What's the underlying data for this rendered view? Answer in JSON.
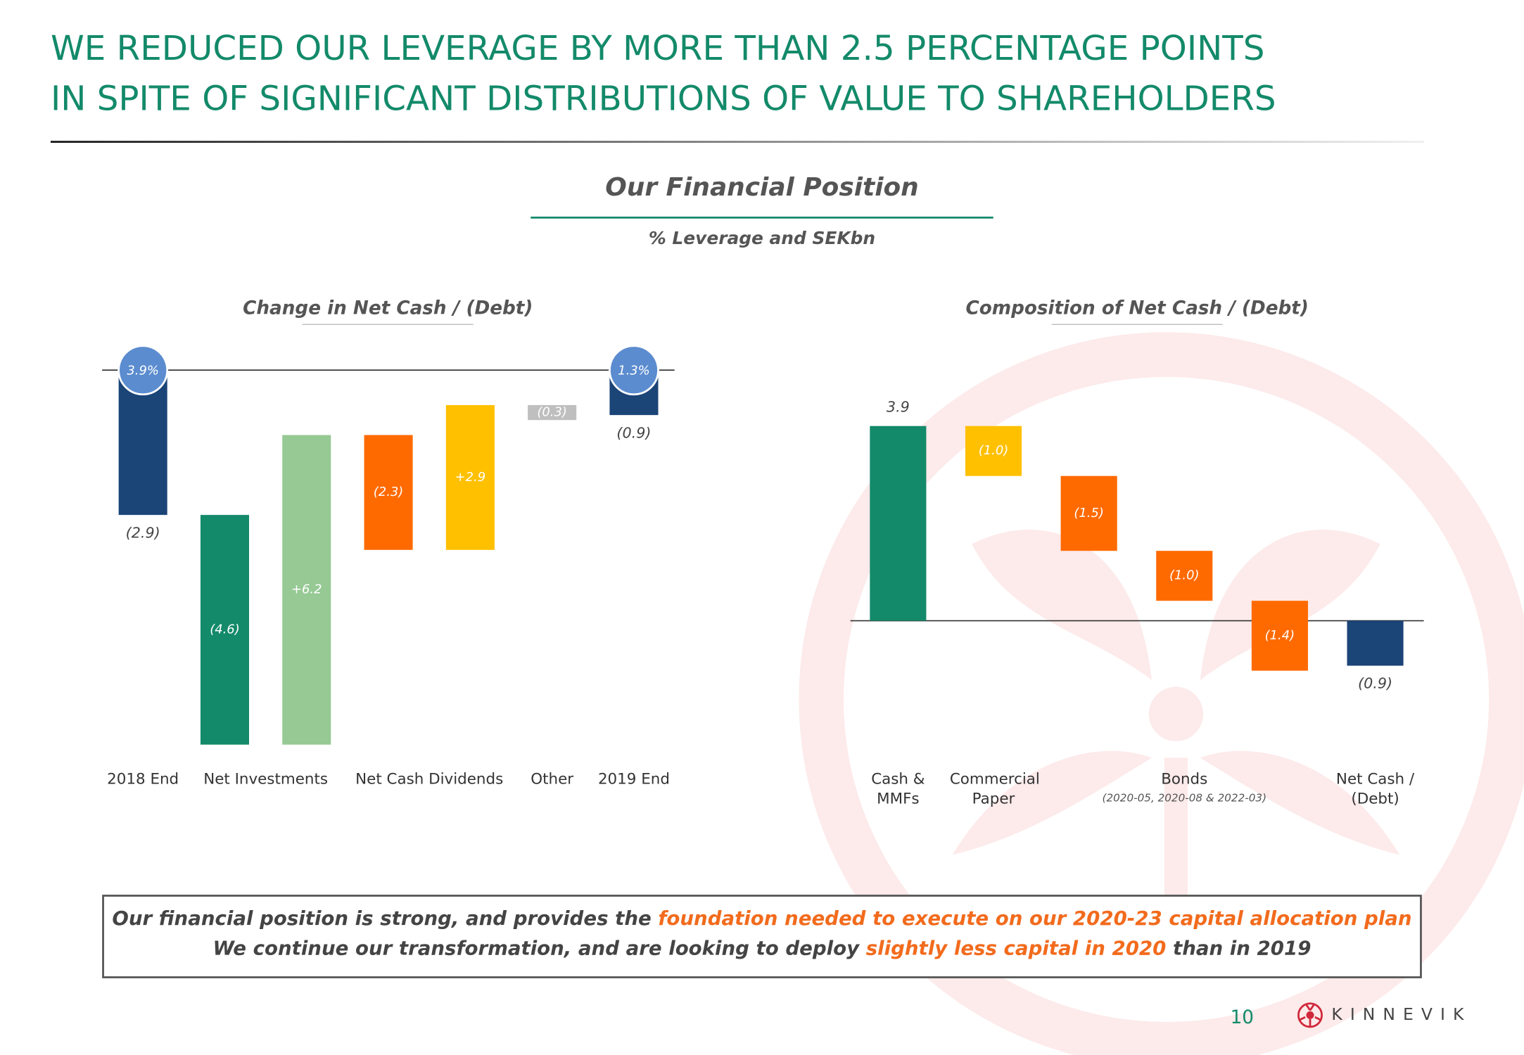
{
  "title": [
    "WE REDUCED OUR LEVERAGE BY MORE THAN 2.5 PERCENTAGE POINTS",
    "IN SPITE OF SIGNIFICANT DISTRIBUTIONS OF VALUE TO SHAREHOLDERS"
  ],
  "heading": "Our Financial Position",
  "subheading": "% Leverage and SEKbn",
  "chart_data": [
    {
      "type": "waterfall",
      "title": "Change in Net Cash / (Debt)",
      "categories": [
        "2018 End",
        "Net Investments",
        null,
        "Net Cash Dividends",
        null,
        "Other",
        "2019 End"
      ],
      "values": [
        -2.9,
        -4.6,
        6.2,
        -2.3,
        2.9,
        -0.3,
        -0.9
      ],
      "value_labels": [
        "(2.9)",
        "(4.6)",
        "+6.2",
        "(2.3)",
        "+2.9",
        "(0.3)",
        "(0.9)"
      ],
      "measures": [
        "absolute",
        "relative",
        "relative",
        "relative",
        "relative",
        "relative",
        "absolute"
      ],
      "colors": [
        "#1b4477",
        "#138a6a",
        "#96c994",
        "#ff6a00",
        "#ffc000",
        "#bfbfbf",
        "#1b4477"
      ],
      "leverage": [
        3.9,
        null,
        null,
        null,
        null,
        null,
        1.3
      ],
      "leverage_labels": [
        "3.9%",
        null,
        null,
        null,
        null,
        null,
        "1.3%"
      ]
    },
    {
      "type": "waterfall",
      "title": "Composition of Net Cash / (Debt)",
      "categories": [
        "Cash & MMFs",
        "Commercial Paper",
        null,
        "Bonds",
        null,
        "Net Cash / (Debt)"
      ],
      "category_notes": [
        null,
        null,
        null,
        "(2020-05, 2020-08 & 2022-03)",
        null,
        null
      ],
      "values": [
        3.9,
        -1.0,
        -1.5,
        -1.0,
        -1.4,
        -0.9
      ],
      "value_labels": [
        "3.9",
        "(1.0)",
        "(1.5)",
        "(1.0)",
        "(1.4)",
        "(0.9)"
      ],
      "measures": [
        "absolute",
        "relative",
        "relative",
        "relative",
        "relative",
        "absolute"
      ],
      "colors": [
        "#138a6a",
        "#ffc000",
        "#ff6a00",
        "#ff6a00",
        "#ff6a00",
        "#1b4477"
      ]
    }
  ],
  "callout": [
    [
      {
        "text": "Our financial position is strong, and provides the ",
        "color": "#444444"
      },
      {
        "text": "foundation needed to execute on our 2020-23 capital allocation plan",
        "color": "#f26b1d"
      }
    ],
    [
      {
        "text": "We continue our transformation, and are looking to deploy ",
        "color": "#444444"
      },
      {
        "text": "slightly less capital in 2020",
        "color": "#f26b1d"
      },
      {
        "text": " than in 2019",
        "color": "#444444"
      }
    ]
  ],
  "page_number": "10",
  "brand": "KINNEVIK"
}
